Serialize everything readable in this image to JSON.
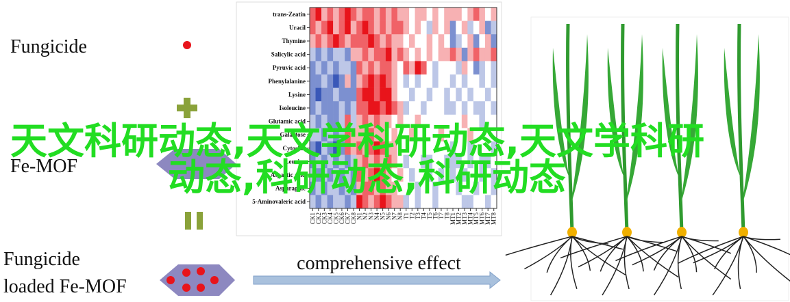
{
  "labels": {
    "fungicide": "Fungicide",
    "fe_mof": "Fe-MOF",
    "loaded": [
      "Fungicide",
      "loaded Fe-MOF"
    ],
    "arrow": "comprehensive effect"
  },
  "heatmap": {
    "rows": [
      "trans-Zeatin",
      "Uracil",
      "Thymine",
      "Salicylic acid",
      "Pyruvic acid",
      "Phenylalanine",
      "Lysine",
      "Isoleucine",
      "Glutamic acid",
      "Galactose",
      "Cytosine",
      "Leucine",
      "Aspartic acid",
      "Asparagine",
      "5-Aminovaleric acid"
    ],
    "columns": [
      "CK1",
      "CK2",
      "CK3",
      "CK4",
      "CK5",
      "CK6",
      "CK7",
      "CK8",
      "N1",
      "N2",
      "N3",
      "N4",
      "N5",
      "N6",
      "N7",
      "N8",
      "T1",
      "T2",
      "T3",
      "T4",
      "T5",
      "T6",
      "T7",
      "T8",
      "MT1",
      "MT2",
      "MT3",
      "MT4",
      "MT5",
      "MT6",
      "MT7",
      "MT8"
    ],
    "color_low": "#3a58b8",
    "color_mid": "#ffffff",
    "color_high": "#e8141b",
    "values": [
      [
        2,
        3,
        1,
        2,
        1,
        2,
        3,
        2,
        1,
        2,
        2,
        1,
        2,
        1,
        2,
        1,
        1,
        0,
        1,
        1,
        0,
        1,
        0,
        1,
        1,
        1,
        0,
        1,
        2,
        1,
        0,
        1
      ],
      [
        2,
        1,
        2,
        3,
        1,
        2,
        3,
        1,
        2,
        3,
        2,
        1,
        2,
        1,
        2,
        2,
        1,
        0,
        1,
        0,
        -1,
        1,
        0,
        1,
        -2,
        0,
        1,
        -1,
        0,
        1,
        -2,
        -1
      ],
      [
        1,
        2,
        1,
        2,
        3,
        2,
        1,
        2,
        2,
        2,
        3,
        2,
        1,
        2,
        1,
        1,
        0,
        1,
        0,
        0,
        1,
        0,
        1,
        0,
        -2,
        -1,
        0,
        1,
        -2,
        0,
        1,
        -2
      ],
      [
        -1,
        -2,
        -1,
        -2,
        -1,
        -1,
        -2,
        1,
        1,
        2,
        1,
        2,
        2,
        3,
        1,
        2,
        1,
        0,
        1,
        0,
        1,
        0,
        1,
        1,
        2,
        1,
        -2,
        1,
        2,
        1,
        1,
        2
      ],
      [
        -2,
        -1,
        -2,
        -1,
        -2,
        -1,
        -1,
        -2,
        2,
        1,
        2,
        1,
        2,
        2,
        1,
        0,
        2,
        1,
        3,
        2,
        0,
        -1,
        0,
        0,
        0,
        -1,
        1,
        0,
        -2,
        -1,
        0,
        -1
      ],
      [
        -2,
        -2,
        -1,
        -2,
        -3,
        -2,
        1,
        -2,
        1,
        2,
        3,
        2,
        3,
        2,
        1,
        0,
        -1,
        0,
        -1,
        0,
        0,
        -1,
        0,
        0,
        -1,
        0,
        -1,
        0,
        0,
        -1,
        0,
        -1
      ],
      [
        -2,
        -3,
        -2,
        -2,
        -1,
        -2,
        -2,
        -2,
        2,
        3,
        3,
        2,
        3,
        3,
        1,
        0,
        0,
        -1,
        0,
        0,
        -1,
        0,
        0,
        -1,
        0,
        -1,
        0,
        -1,
        0,
        0,
        -1,
        0
      ],
      [
        -2,
        -1,
        -2,
        -2,
        -2,
        -1,
        -2,
        -1,
        2,
        2,
        3,
        3,
        2,
        3,
        2,
        1,
        -1,
        0,
        0,
        -1,
        0,
        0,
        0,
        -1,
        -1,
        0,
        -1,
        0,
        -1,
        -1,
        0,
        -1
      ],
      [
        -1,
        -2,
        -1,
        -2,
        -2,
        -1,
        2,
        -1,
        1,
        2,
        1,
        2,
        1,
        1,
        0,
        1,
        0,
        0,
        1,
        0,
        0,
        0,
        0,
        0,
        0,
        0,
        1,
        0,
        0,
        -1,
        0,
        0
      ],
      [
        -1,
        -1,
        -2,
        -1,
        -2,
        -1,
        2,
        1,
        1,
        1,
        2,
        1,
        1,
        0,
        1,
        0,
        0,
        1,
        0,
        0,
        0,
        0,
        1,
        0,
        0,
        0,
        0,
        1,
        0,
        0,
        0,
        0
      ],
      [
        -2,
        -3,
        -1,
        -2,
        -3,
        -2,
        2,
        1,
        2,
        1,
        2,
        3,
        2,
        1,
        1,
        0,
        0,
        0,
        0,
        0,
        0,
        0,
        0,
        0,
        -1,
        0,
        0,
        -1,
        0,
        0,
        0,
        -1
      ],
      [
        -2,
        -1,
        -2,
        -1,
        -2,
        -1,
        -2,
        -1,
        1,
        2,
        1,
        2,
        1,
        2,
        1,
        0,
        -1,
        0,
        0,
        -1,
        -1,
        0,
        0,
        -1,
        -1,
        -1,
        0,
        -1,
        0,
        -1,
        -1,
        0
      ],
      [
        -1,
        -2,
        -1,
        -2,
        -1,
        -2,
        -1,
        -2,
        2,
        1,
        2,
        3,
        2,
        1,
        0,
        1,
        0,
        -1,
        0,
        0,
        -1,
        0,
        -1,
        0,
        -1,
        0,
        -1,
        0,
        0,
        -1,
        0,
        -1
      ],
      [
        -2,
        -1,
        -2,
        -1,
        -1,
        -2,
        -1,
        -2,
        1,
        2,
        2,
        1,
        2,
        1,
        1,
        0,
        0,
        0,
        -1,
        0,
        0,
        -1,
        0,
        0,
        0,
        -1,
        0,
        0,
        -1,
        0,
        0,
        -1
      ],
      [
        -1,
        -2,
        -1,
        -2,
        -1,
        -1,
        -2,
        -1,
        3,
        2,
        1,
        2,
        3,
        2,
        1,
        1,
        -1,
        0,
        -1,
        0,
        0,
        -1,
        0,
        0,
        0,
        0,
        -1,
        -1,
        0,
        0,
        -1,
        0
      ]
    ]
  },
  "overlay": [
    "天文科研动态,天文学科研动态,天文学科研",
    "动态,科研动态,科研动态"
  ]
}
